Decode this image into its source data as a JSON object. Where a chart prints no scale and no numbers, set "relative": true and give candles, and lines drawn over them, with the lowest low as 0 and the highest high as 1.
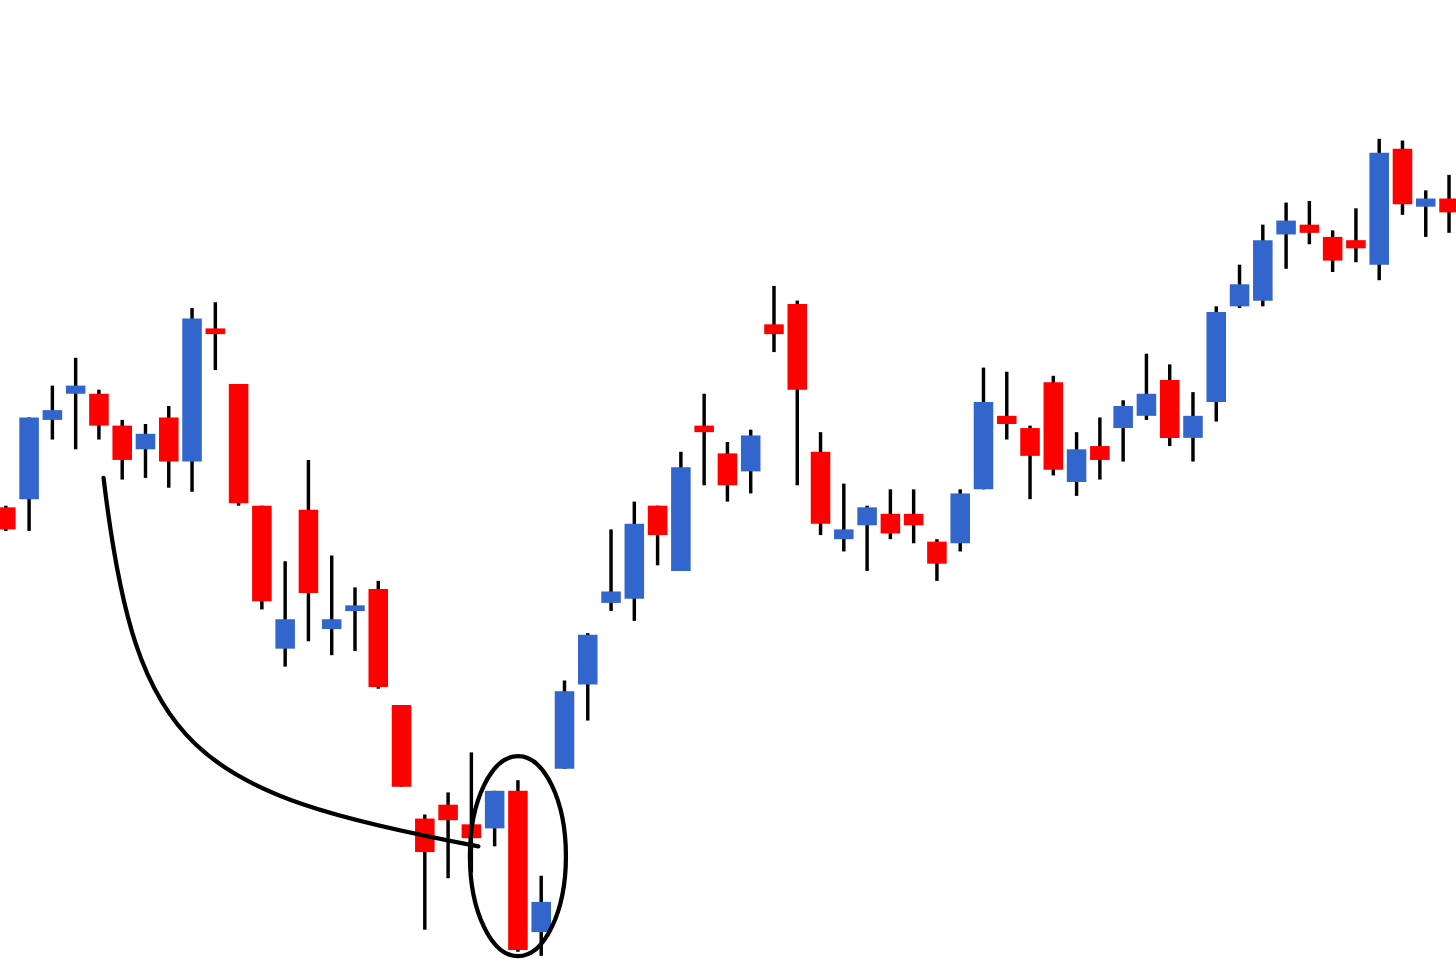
{
  "chart_data": {
    "type": "candlestick",
    "relative": true,
    "categories": [
      null,
      null,
      null,
      null,
      null,
      null,
      null,
      null,
      null,
      null,
      null,
      null,
      null,
      null,
      null,
      null,
      null,
      null,
      null,
      null,
      null,
      null,
      null,
      null,
      null,
      null,
      null,
      null,
      null,
      null,
      null,
      null,
      null,
      null,
      null,
      null,
      null,
      null,
      null,
      null,
      null,
      null,
      null,
      null,
      null,
      null,
      null,
      null,
      null,
      null,
      null,
      null,
      null,
      null,
      null,
      null,
      null,
      null,
      null,
      null,
      null,
      null,
      null
    ],
    "ohlc": [
      [
        0.549,
        0.551,
        0.52,
        0.522
      ],
      [
        0.559,
        0.659,
        0.52,
        0.659
      ],
      [
        0.656,
        0.698,
        0.632,
        0.668
      ],
      [
        0.688,
        0.732,
        0.62,
        0.698
      ],
      [
        0.688,
        0.693,
        0.632,
        0.649
      ],
      [
        0.649,
        0.656,
        0.583,
        0.607
      ],
      [
        0.62,
        0.651,
        0.585,
        0.639
      ],
      [
        0.659,
        0.673,
        0.573,
        0.605
      ],
      [
        0.605,
        0.793,
        0.568,
        0.78
      ],
      [
        0.768,
        0.8,
        0.717,
        0.761
      ],
      [
        0.7,
        0.7,
        0.551,
        0.554
      ],
      [
        0.551,
        0.551,
        0.424,
        0.434
      ],
      [
        0.376,
        0.483,
        0.354,
        0.412
      ],
      [
        0.546,
        0.607,
        0.385,
        0.444
      ],
      [
        0.4,
        0.49,
        0.368,
        0.412
      ],
      [
        0.422,
        0.451,
        0.373,
        0.429
      ],
      [
        0.449,
        0.459,
        0.327,
        0.329
      ],
      [
        0.307,
        0.307,
        0.207,
        0.207
      ],
      [
        0.168,
        0.173,
        0.032,
        0.127
      ],
      [
        0.185,
        0.2,
        0.095,
        0.166
      ],
      [
        0.161,
        0.249,
        0.102,
        0.144
      ],
      [
        0.156,
        0.202,
        0.134,
        0.202
      ],
      [
        0.202,
        0.215,
        0.005,
        0.007
      ],
      [
        0.029,
        0.098,
        0.0,
        0.066
      ],
      [
        0.229,
        0.337,
        0.229,
        0.324
      ],
      [
        0.332,
        0.395,
        0.288,
        0.393
      ],
      [
        0.432,
        0.522,
        0.422,
        0.446
      ],
      [
        0.437,
        0.556,
        0.41,
        0.529
      ],
      [
        0.551,
        0.551,
        0.478,
        0.515
      ],
      [
        0.471,
        0.617,
        0.471,
        0.598
      ],
      [
        0.649,
        0.688,
        0.576,
        0.641
      ],
      [
        0.615,
        0.629,
        0.556,
        0.576
      ],
      [
        0.593,
        0.644,
        0.566,
        0.637
      ],
      [
        0.773,
        0.82,
        0.739,
        0.761
      ],
      [
        0.798,
        0.802,
        0.576,
        0.693
      ],
      [
        0.617,
        0.641,
        0.515,
        0.529
      ],
      [
        0.51,
        0.578,
        0.495,
        0.522
      ],
      [
        0.527,
        0.551,
        0.471,
        0.549
      ],
      [
        0.541,
        0.571,
        0.51,
        0.517
      ],
      [
        0.541,
        0.571,
        0.505,
        0.527
      ],
      [
        0.507,
        0.51,
        0.459,
        0.48
      ],
      [
        0.505,
        0.571,
        0.495,
        0.566
      ],
      [
        0.571,
        0.72,
        0.571,
        0.678
      ],
      [
        0.661,
        0.715,
        0.632,
        0.651
      ],
      [
        0.646,
        0.649,
        0.559,
        0.612
      ],
      [
        0.702,
        0.71,
        0.588,
        0.595
      ],
      [
        0.58,
        0.641,
        0.563,
        0.62
      ],
      [
        0.624,
        0.659,
        0.583,
        0.607
      ],
      [
        0.646,
        0.68,
        0.605,
        0.673
      ],
      [
        0.661,
        0.737,
        0.656,
        0.688
      ],
      [
        0.705,
        0.724,
        0.624,
        0.634
      ],
      [
        0.634,
        0.69,
        0.605,
        0.661
      ],
      [
        0.678,
        0.795,
        0.654,
        0.788
      ],
      [
        0.795,
        0.846,
        0.793,
        0.822
      ],
      [
        0.802,
        0.895,
        0.795,
        0.876
      ],
      [
        0.883,
        0.922,
        0.841,
        0.9
      ],
      [
        0.895,
        0.924,
        0.871,
        0.885
      ],
      [
        0.88,
        0.888,
        0.837,
        0.851
      ],
      [
        0.876,
        0.915,
        0.849,
        0.866
      ],
      [
        0.846,
        1.0,
        0.827,
        0.983
      ],
      [
        0.988,
        0.998,
        0.907,
        0.92
      ],
      [
        0.917,
        0.937,
        0.88,
        0.927
      ],
      [
        0.927,
        0.956,
        0.885,
        0.91
      ]
    ],
    "colors": [
      "#ff0000",
      "#3366cc",
      "#3366cc",
      "#3366cc",
      "#ff0000",
      "#ff0000",
      "#3366cc",
      "#ff0000",
      "#3366cc",
      "#ff0000",
      "#ff0000",
      "#ff0000",
      "#3366cc",
      "#ff0000",
      "#3366cc",
      "#3366cc",
      "#ff0000",
      "#ff0000",
      "#ff0000",
      "#ff0000",
      "#ff0000",
      "#3366cc",
      "#ff0000",
      "#3366cc",
      "#3366cc",
      "#3366cc",
      "#3366cc",
      "#3366cc",
      "#ff0000",
      "#3366cc",
      "#ff0000",
      "#ff0000",
      "#3366cc",
      "#ff0000",
      "#ff0000",
      "#ff0000",
      "#3366cc",
      "#3366cc",
      "#ff0000",
      "#ff0000",
      "#ff0000",
      "#3366cc",
      "#3366cc",
      "#ff0000",
      "#ff0000",
      "#ff0000",
      "#3366cc",
      "#ff0000",
      "#3366cc",
      "#3366cc",
      "#ff0000",
      "#3366cc",
      "#3366cc",
      "#3366cc",
      "#3366cc",
      "#3366cc",
      "#ff0000",
      "#ff0000",
      "#ff0000",
      "#3366cc",
      "#ff0000",
      "#3366cc",
      "#ff0000"
    ]
  }
}
